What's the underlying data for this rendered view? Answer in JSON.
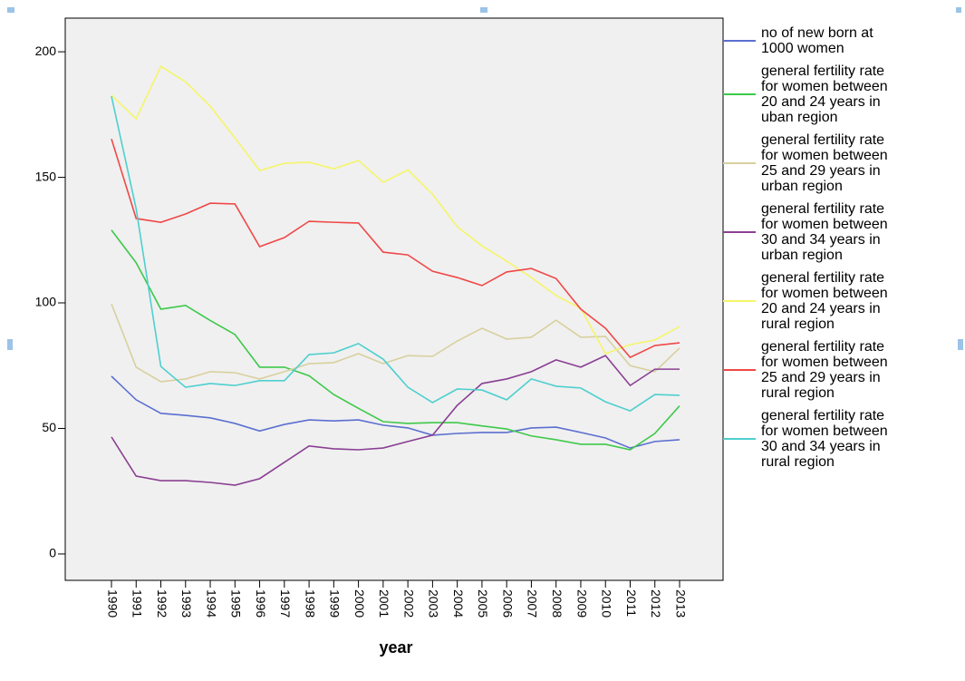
{
  "chart_data": {
    "type": "line",
    "x_label": "year",
    "categories": [
      "1990",
      "1991",
      "1992",
      "1993",
      "1994",
      "1995",
      "1996",
      "1997",
      "1998",
      "1999",
      "2000",
      "2001",
      "2002",
      "2003",
      "2004",
      "2005",
      "2006",
      "2007",
      "2008",
      "2009",
      "2010",
      "2011",
      "2012",
      "2013"
    ],
    "ylim": [
      -10.5,
      213.4
    ],
    "yticks": [
      0,
      50,
      100,
      150,
      200
    ],
    "grid": false,
    "legend": "right",
    "series": [
      {
        "name": "no of new born at 1000 women",
        "color": "#5b6fd0",
        "values": [
          70.8,
          61.4,
          56,
          55.2,
          54.2,
          52,
          49,
          51.6,
          53.4,
          53,
          53.4,
          51.3,
          50.2,
          47.3,
          48,
          48.4,
          48.4,
          50.2,
          50.5,
          48.4,
          46.2,
          42.2,
          44.8,
          45.5
        ]
      },
      {
        "name": "general fertility rate for women between 20 and 24 years in uban region",
        "color": "#3ec94a",
        "values": [
          129,
          116,
          97.5,
          99,
          93,
          87.4,
          74.4,
          74.4,
          71,
          63.5,
          58,
          52.7,
          52,
          52.3,
          52.3,
          51,
          49.8,
          47,
          45.5,
          43.7,
          43.7,
          41.5,
          48,
          59
        ]
      },
      {
        "name": "general fertility rate for women between 25 and 29 years in urban region",
        "color": "#d8d09e",
        "values": [
          99.6,
          74.4,
          68.6,
          69.7,
          72.6,
          72.2,
          69.7,
          72.6,
          75.8,
          76.2,
          79.8,
          75.8,
          79,
          78.7,
          84.8,
          89.9,
          85.6,
          86.3,
          93.1,
          86.3,
          86.6,
          75,
          72.6,
          82
        ]
      },
      {
        "name": "general fertility rate for women between 30 and 34 years in urban region",
        "color": "#8a3f93",
        "values": [
          46.6,
          31,
          29.2,
          29.2,
          28.5,
          27.4,
          30,
          36.5,
          43,
          41.9,
          41.5,
          42.2,
          44.8,
          47.3,
          59.2,
          67.9,
          69.7,
          72.6,
          77.3,
          74.4,
          79,
          67.1,
          73.6,
          73.6
        ]
      },
      {
        "name": "general fertility rate for women between 20 and 24 years in rural region",
        "color": "#f5f56a",
        "values": [
          182.7,
          173.3,
          194.2,
          188,
          178.3,
          165.7,
          152.7,
          155.6,
          156,
          153.4,
          156.7,
          148,
          153,
          143.3,
          130.3,
          122.7,
          116.6,
          110.1,
          102.9,
          97.8,
          79.8,
          83.4,
          85.2,
          90.6
        ]
      },
      {
        "name": "general fertility rate for women between 25 and 29 years in rural region",
        "color": "#f04848",
        "values": [
          165.3,
          133.6,
          132.1,
          135.4,
          139.7,
          139.4,
          122.4,
          126,
          132.5,
          132.1,
          131.8,
          120.2,
          119.1,
          112.6,
          110.1,
          106.9,
          112.3,
          113.7,
          109.7,
          97.5,
          89.9,
          78.3,
          83,
          84.1
        ]
      },
      {
        "name": "general fertility rate for women between 30 and 34 years in rural region",
        "color": "#4fcfcf",
        "values": [
          182.3,
          137.5,
          74.7,
          66.4,
          67.9,
          67.1,
          69,
          69,
          79.4,
          80.1,
          83.8,
          77.6,
          66.4,
          60.3,
          65.7,
          65.3,
          61.4,
          69.7,
          66.8,
          66.1,
          60.6,
          57,
          63.5,
          63.2
        ]
      }
    ]
  }
}
